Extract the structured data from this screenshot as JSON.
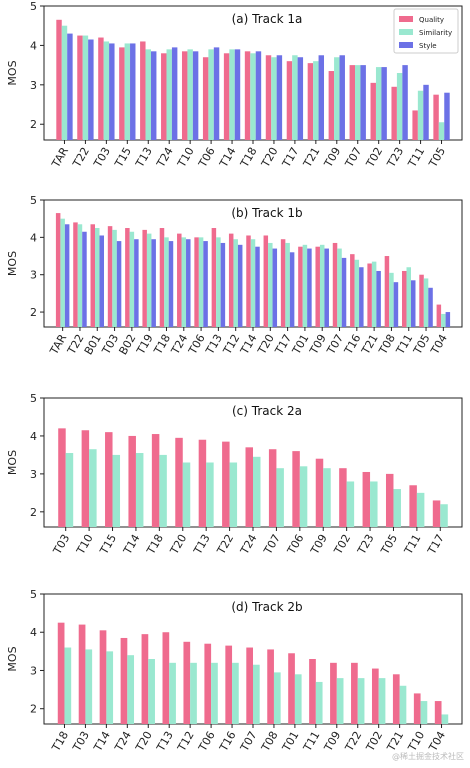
{
  "colors": {
    "Quality": "#ef6b8e",
    "Similarity": "#9ae8d0",
    "Style": "#6c71e6"
  },
  "watermark_text": "@稀土掘金技术社区",
  "chart_data": [
    {
      "type": "bar",
      "title": "(a) Track 1a",
      "ylabel": "MOS",
      "ylim": [
        1.6,
        5
      ],
      "yticks": [
        2,
        3,
        4,
        5
      ],
      "legend": "top-right",
      "categories": [
        "TAR",
        "T22",
        "T03",
        "T15",
        "T13",
        "T24",
        "T10",
        "T06",
        "T14",
        "T18",
        "T20",
        "T17",
        "T21",
        "T09",
        "T07",
        "T02",
        "T23",
        "T11",
        "T05"
      ],
      "series": [
        {
          "name": "Quality",
          "values": [
            4.65,
            4.25,
            4.2,
            3.95,
            4.1,
            3.8,
            3.85,
            3.7,
            3.8,
            3.85,
            3.75,
            3.6,
            3.55,
            3.35,
            3.5,
            3.05,
            2.95,
            2.35,
            2.75
          ]
        },
        {
          "name": "Similarity",
          "values": [
            4.5,
            4.25,
            4.1,
            4.05,
            3.9,
            3.9,
            3.9,
            3.9,
            3.9,
            3.8,
            3.7,
            3.75,
            3.6,
            3.7,
            3.5,
            3.45,
            3.3,
            2.85,
            2.05
          ]
        },
        {
          "name": "Style",
          "values": [
            4.3,
            4.15,
            4.05,
            4.05,
            3.85,
            3.95,
            3.85,
            3.95,
            3.9,
            3.85,
            3.75,
            3.7,
            3.75,
            3.75,
            3.5,
            3.45,
            3.5,
            3.0,
            2.8
          ]
        }
      ]
    },
    {
      "type": "bar",
      "title": "(b) Track 1b",
      "ylabel": "MOS",
      "ylim": [
        1.6,
        5
      ],
      "yticks": [
        2,
        3,
        4,
        5
      ],
      "categories": [
        "TAR",
        "T22",
        "B01",
        "T03",
        "B02",
        "T19",
        "T18",
        "T24",
        "T06",
        "T13",
        "T12",
        "T14",
        "T20",
        "T17",
        "T01",
        "T09",
        "T07",
        "T16",
        "T21",
        "T08",
        "T11",
        "T05",
        "T04"
      ],
      "series": [
        {
          "name": "Quality",
          "values": [
            4.65,
            4.4,
            4.35,
            4.3,
            4.25,
            4.2,
            4.25,
            4.1,
            4.0,
            4.25,
            4.1,
            4.05,
            4.05,
            3.95,
            3.75,
            3.75,
            3.85,
            3.55,
            3.3,
            3.5,
            3.1,
            3.0,
            2.2
          ]
        },
        {
          "name": "Similarity",
          "values": [
            4.5,
            4.35,
            4.25,
            4.2,
            4.15,
            4.1,
            4.0,
            4.0,
            4.0,
            4.0,
            3.95,
            3.95,
            3.85,
            3.85,
            3.8,
            3.8,
            3.7,
            3.4,
            3.35,
            3.05,
            3.2,
            2.9,
            1.95
          ]
        },
        {
          "name": "Style",
          "values": [
            4.35,
            4.15,
            4.05,
            3.9,
            3.95,
            3.95,
            3.9,
            3.95,
            3.9,
            3.85,
            3.8,
            3.75,
            3.7,
            3.6,
            3.7,
            3.7,
            3.45,
            3.2,
            3.1,
            2.8,
            2.85,
            2.65,
            2.0
          ]
        }
      ]
    },
    {
      "type": "bar",
      "title": "(c) Track 2a",
      "ylabel": "MOS",
      "ylim": [
        1.6,
        5
      ],
      "yticks": [
        2,
        3,
        4,
        5
      ],
      "categories": [
        "T03",
        "T10",
        "T15",
        "T14",
        "T18",
        "T20",
        "T13",
        "T22",
        "T24",
        "T07",
        "T06",
        "T09",
        "T02",
        "T23",
        "T05",
        "T11",
        "T17"
      ],
      "series": [
        {
          "name": "Quality",
          "values": [
            4.2,
            4.15,
            4.1,
            4.0,
            4.05,
            3.95,
            3.9,
            3.85,
            3.7,
            3.65,
            3.6,
            3.4,
            3.15,
            3.05,
            3.0,
            2.7,
            2.3
          ]
        },
        {
          "name": "Similarity",
          "values": [
            3.55,
            3.65,
            3.5,
            3.55,
            3.5,
            3.3,
            3.3,
            3.3,
            3.45,
            3.15,
            3.2,
            3.15,
            2.8,
            2.8,
            2.6,
            2.5,
            2.2
          ]
        }
      ]
    },
    {
      "type": "bar",
      "title": "(d) Track 2b",
      "ylabel": "MOS",
      "ylim": [
        1.6,
        5
      ],
      "yticks": [
        2,
        3,
        4,
        5
      ],
      "categories": [
        "T18",
        "T03",
        "T14",
        "T24",
        "T20",
        "T13",
        "T12",
        "T06",
        "T16",
        "T07",
        "T08",
        "T01",
        "T11",
        "T09",
        "T22",
        "T02",
        "T21",
        "T10",
        "T04"
      ],
      "series": [
        {
          "name": "Quality",
          "values": [
            4.25,
            4.2,
            4.05,
            3.85,
            3.95,
            4.0,
            3.75,
            3.7,
            3.65,
            3.6,
            3.55,
            3.45,
            3.3,
            3.2,
            3.2,
            3.05,
            2.9,
            2.4,
            2.2
          ]
        },
        {
          "name": "Similarity",
          "values": [
            3.6,
            3.55,
            3.5,
            3.4,
            3.3,
            3.2,
            3.2,
            3.2,
            3.2,
            3.15,
            2.95,
            2.9,
            2.7,
            2.8,
            2.8,
            2.8,
            2.6,
            2.2,
            1.85
          ]
        }
      ]
    }
  ]
}
